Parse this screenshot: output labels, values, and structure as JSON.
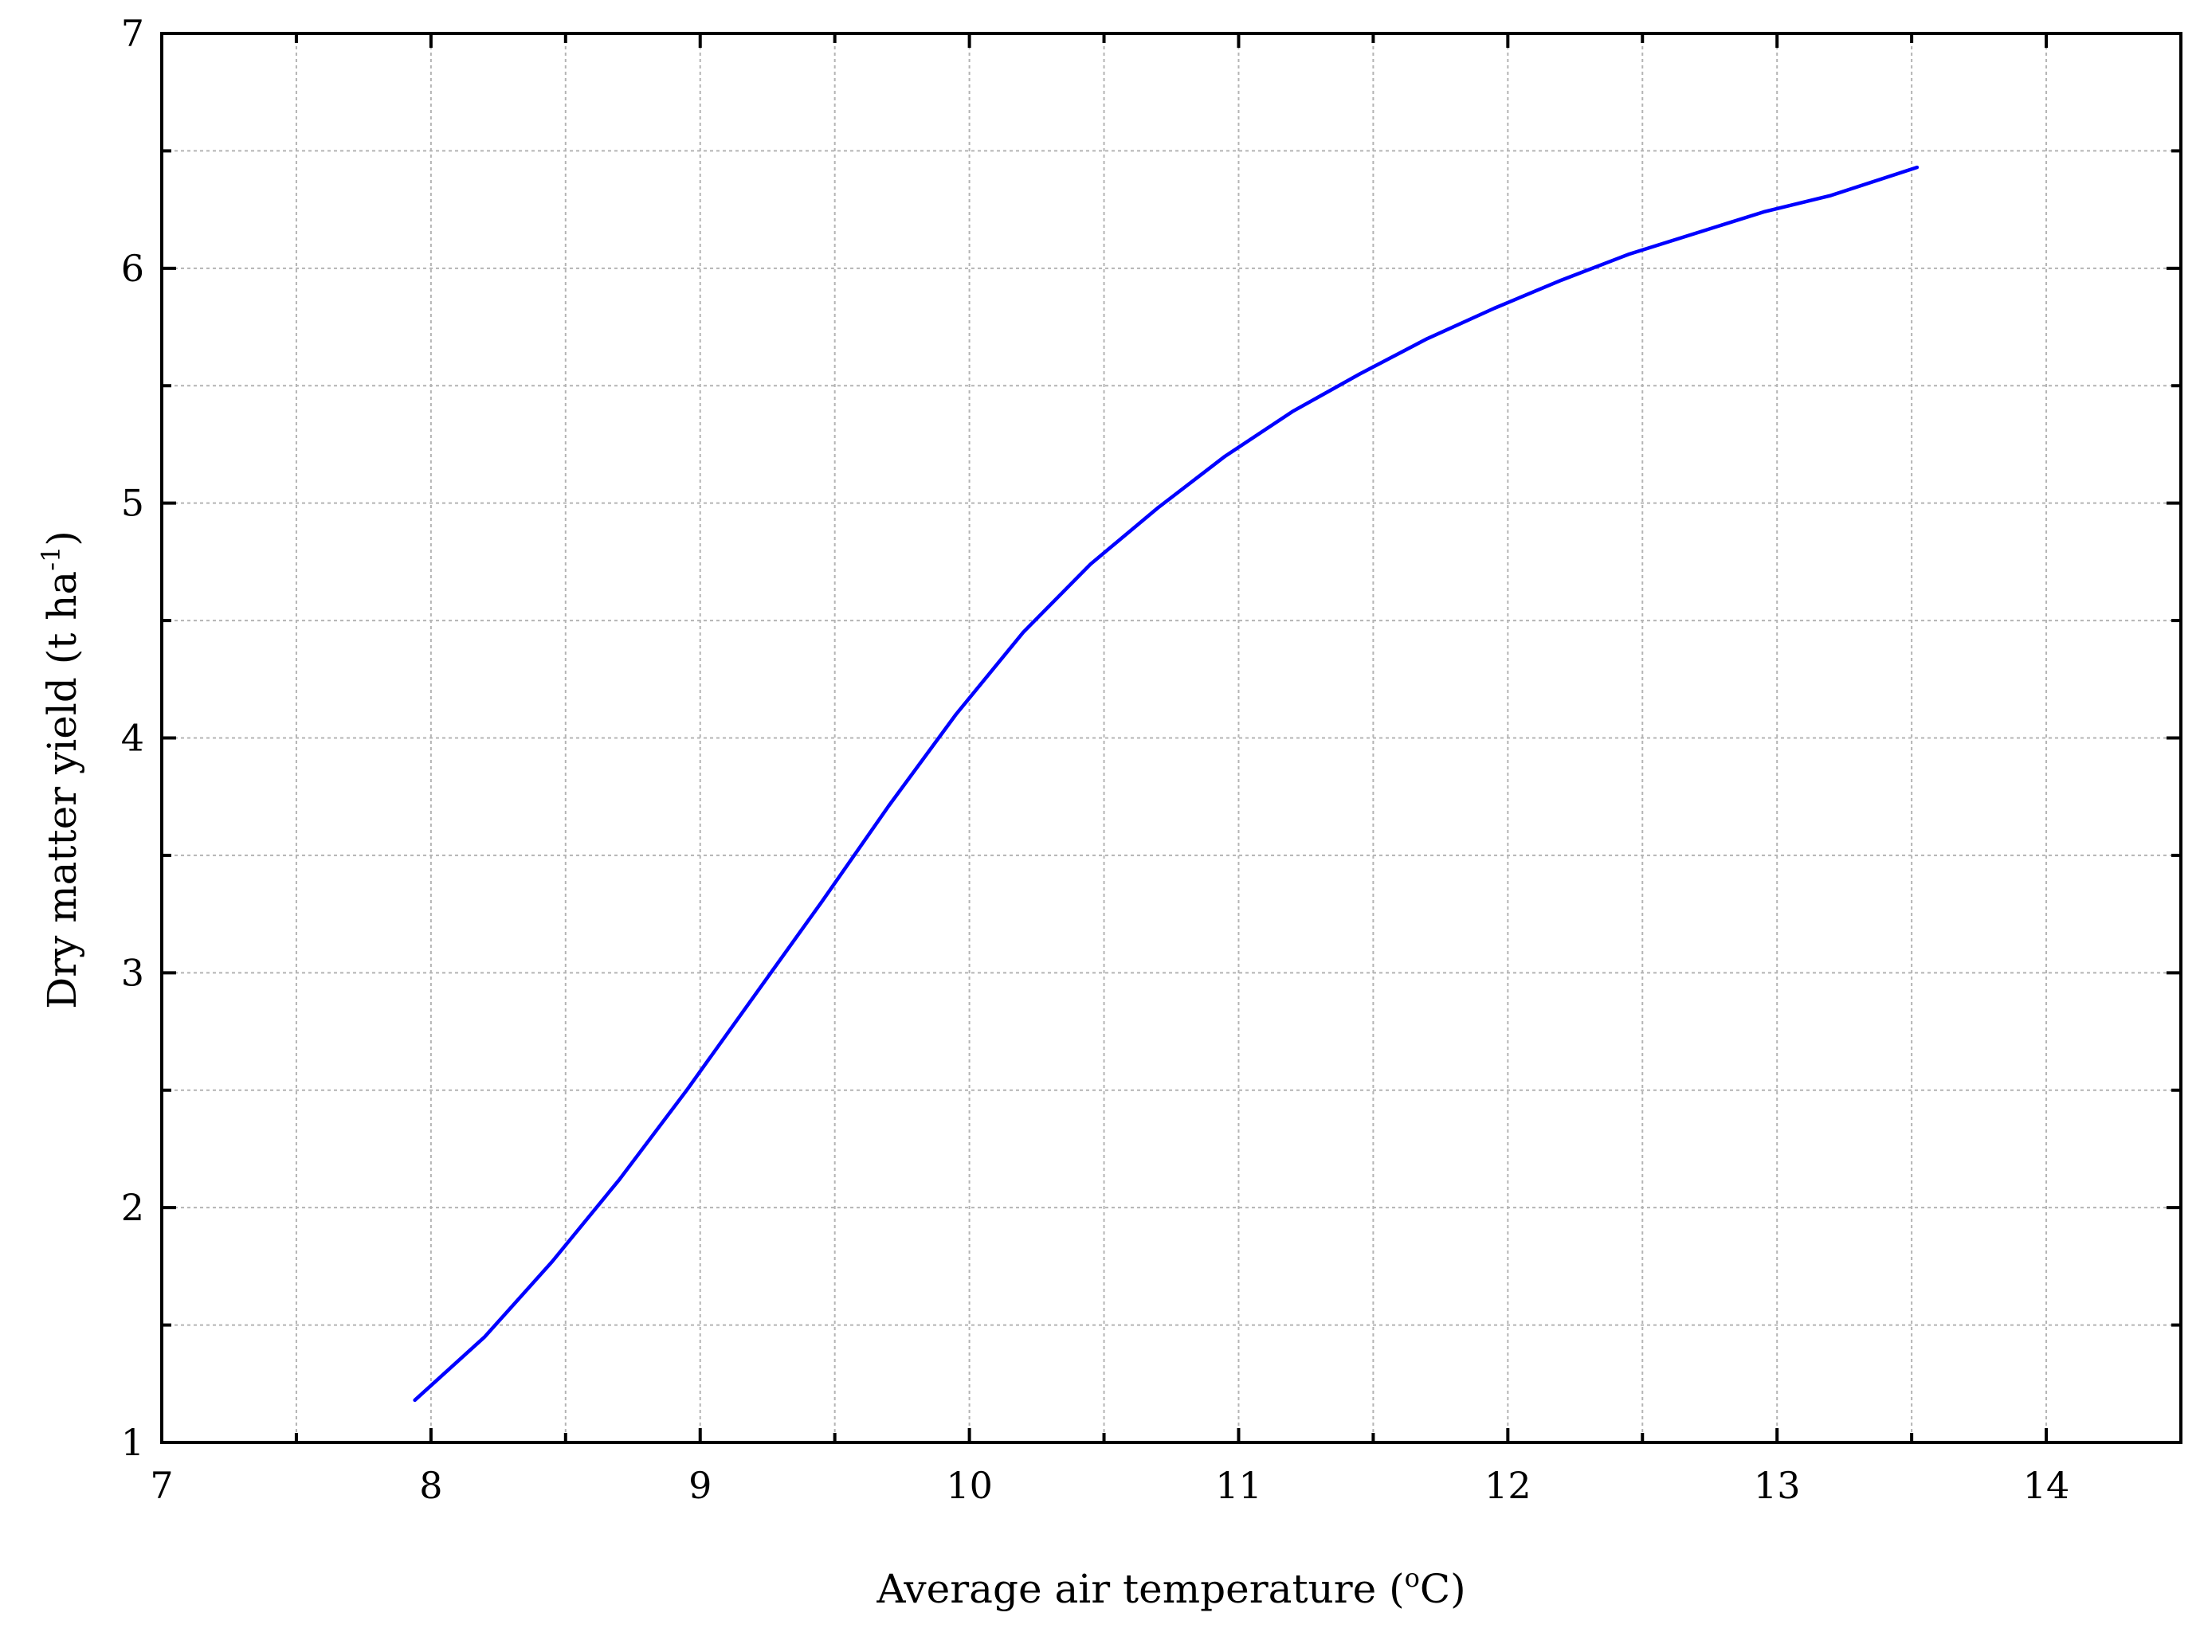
{
  "chart_data": {
    "type": "line",
    "title": "",
    "xlabel": "Average air temperature (oC)",
    "xlabel_parts": {
      "before": "Average air temperature (",
      "sup": "o",
      "after": "C)"
    },
    "ylabel": "Dry matter yield (t ha-1)",
    "ylabel_parts": {
      "before": "Dry matter yield (t ha",
      "sup": "-1",
      "after": ")"
    },
    "xlim": [
      7,
      14.5
    ],
    "ylim": [
      1,
      7
    ],
    "x_ticks": [
      7,
      8,
      9,
      10,
      11,
      12,
      13,
      14
    ],
    "x_tick_labels": [
      "7",
      "8",
      "9",
      "10",
      "11",
      "12",
      "13",
      "14"
    ],
    "x_minor_ticks": [
      7.5,
      8.5,
      9.5,
      10.5,
      11.5,
      12.5,
      13.5
    ],
    "y_ticks": [
      1,
      2,
      3,
      4,
      5,
      6,
      7
    ],
    "y_tick_labels": [
      "1",
      "2",
      "3",
      "4",
      "5",
      "6",
      "7"
    ],
    "y_minor_ticks": [
      1.5,
      2.5,
      3.5,
      4.5,
      5.5,
      6.5
    ],
    "grid": true,
    "legend": "none",
    "series": [
      {
        "color": "#0000ff",
        "x": [
          7.94,
          8.2,
          8.45,
          8.7,
          8.95,
          9.2,
          9.45,
          9.7,
          9.95,
          10.2,
          10.45,
          10.7,
          10.95,
          11.2,
          11.45,
          11.7,
          11.95,
          12.2,
          12.45,
          12.7,
          12.95,
          13.2,
          13.52
        ],
        "y": [
          1.18,
          1.45,
          1.77,
          2.12,
          2.5,
          2.9,
          3.3,
          3.71,
          4.1,
          4.45,
          4.74,
          4.98,
          5.2,
          5.39,
          5.55,
          5.7,
          5.83,
          5.95,
          6.06,
          6.15,
          6.24,
          6.31,
          6.43
        ]
      }
    ]
  }
}
